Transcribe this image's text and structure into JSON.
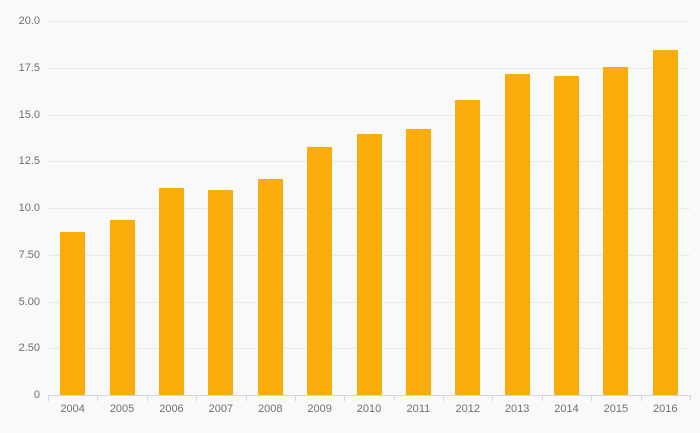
{
  "chart_data": {
    "type": "bar",
    "title": "",
    "xlabel": "",
    "ylabel": "",
    "categories": [
      "2004",
      "2005",
      "2006",
      "2007",
      "2008",
      "2009",
      "2010",
      "2011",
      "2012",
      "2013",
      "2014",
      "2015",
      "2016"
    ],
    "values": [
      8.7,
      9.35,
      11.05,
      10.95,
      11.55,
      13.25,
      13.95,
      14.2,
      15.8,
      17.15,
      17.05,
      17.55,
      18.45
    ],
    "ylim": [
      0,
      20
    ],
    "yticks": [
      {
        "value": 20,
        "label": "20.0"
      },
      {
        "value": 17.5,
        "label": "17.5"
      },
      {
        "value": 15,
        "label": "15.0"
      },
      {
        "value": 12.5,
        "label": "12.5"
      },
      {
        "value": 10,
        "label": "10.0"
      },
      {
        "value": 7.5,
        "label": "7.50"
      },
      {
        "value": 5,
        "label": "5.00"
      },
      {
        "value": 2.5,
        "label": "2.50"
      },
      {
        "value": 0,
        "label": "0"
      }
    ],
    "grid": true,
    "legend_position": "none"
  },
  "colors": {
    "background": "#f9f9f9",
    "bar": "#FAAC0A",
    "gridline": "#e9e9e9",
    "axis_line": "#ccd6eb",
    "label_text": "#6f6f6f"
  }
}
